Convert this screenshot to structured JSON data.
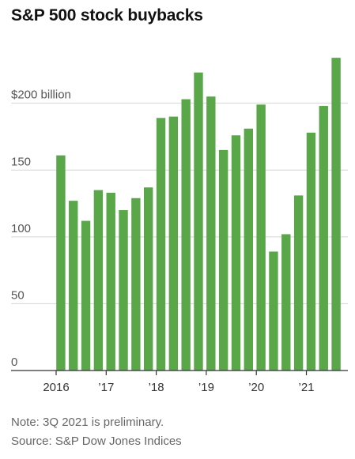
{
  "chart_data": {
    "type": "bar",
    "title": "S&P 500 stock buybacks",
    "xlabel": "",
    "ylabel": "",
    "ylim": [
      0,
      240
    ],
    "y_ticks": [
      {
        "value": 0,
        "label": "0"
      },
      {
        "value": 50,
        "label": "50"
      },
      {
        "value": 100,
        "label": "100"
      },
      {
        "value": 150,
        "label": "150"
      },
      {
        "value": 200,
        "label": "$200 billion"
      }
    ],
    "x_tick_labels": [
      {
        "label": "2016",
        "index": 0
      },
      {
        "label": "’17",
        "index": 4
      },
      {
        "label": "’18",
        "index": 8
      },
      {
        "label": "’19",
        "index": 12
      },
      {
        "label": "’20",
        "index": 16
      },
      {
        "label": "’21",
        "index": 20
      }
    ],
    "categories": [
      "1Q 2016",
      "2Q 2016",
      "3Q 2016",
      "4Q 2016",
      "1Q 2017",
      "2Q 2017",
      "3Q 2017",
      "4Q 2017",
      "1Q 2018",
      "2Q 2018",
      "3Q 2018",
      "4Q 2018",
      "1Q 2019",
      "2Q 2019",
      "3Q 2019",
      "4Q 2019",
      "1Q 2020",
      "2Q 2020",
      "3Q 2020",
      "4Q 2020",
      "1Q 2021",
      "2Q 2021",
      "3Q 2021"
    ],
    "values": [
      161,
      127,
      112,
      135,
      133,
      120,
      129,
      137,
      189,
      190,
      203,
      223,
      205,
      165,
      176,
      181,
      199,
      89,
      102,
      131,
      178,
      198,
      234
    ],
    "bar_color": "#5aa74a",
    "grid": "horizontal",
    "legend": "none"
  },
  "footnotes": {
    "note": "Note: 3Q 2021 is preliminary.",
    "source": "Source: S&P Dow Jones Indices"
  }
}
